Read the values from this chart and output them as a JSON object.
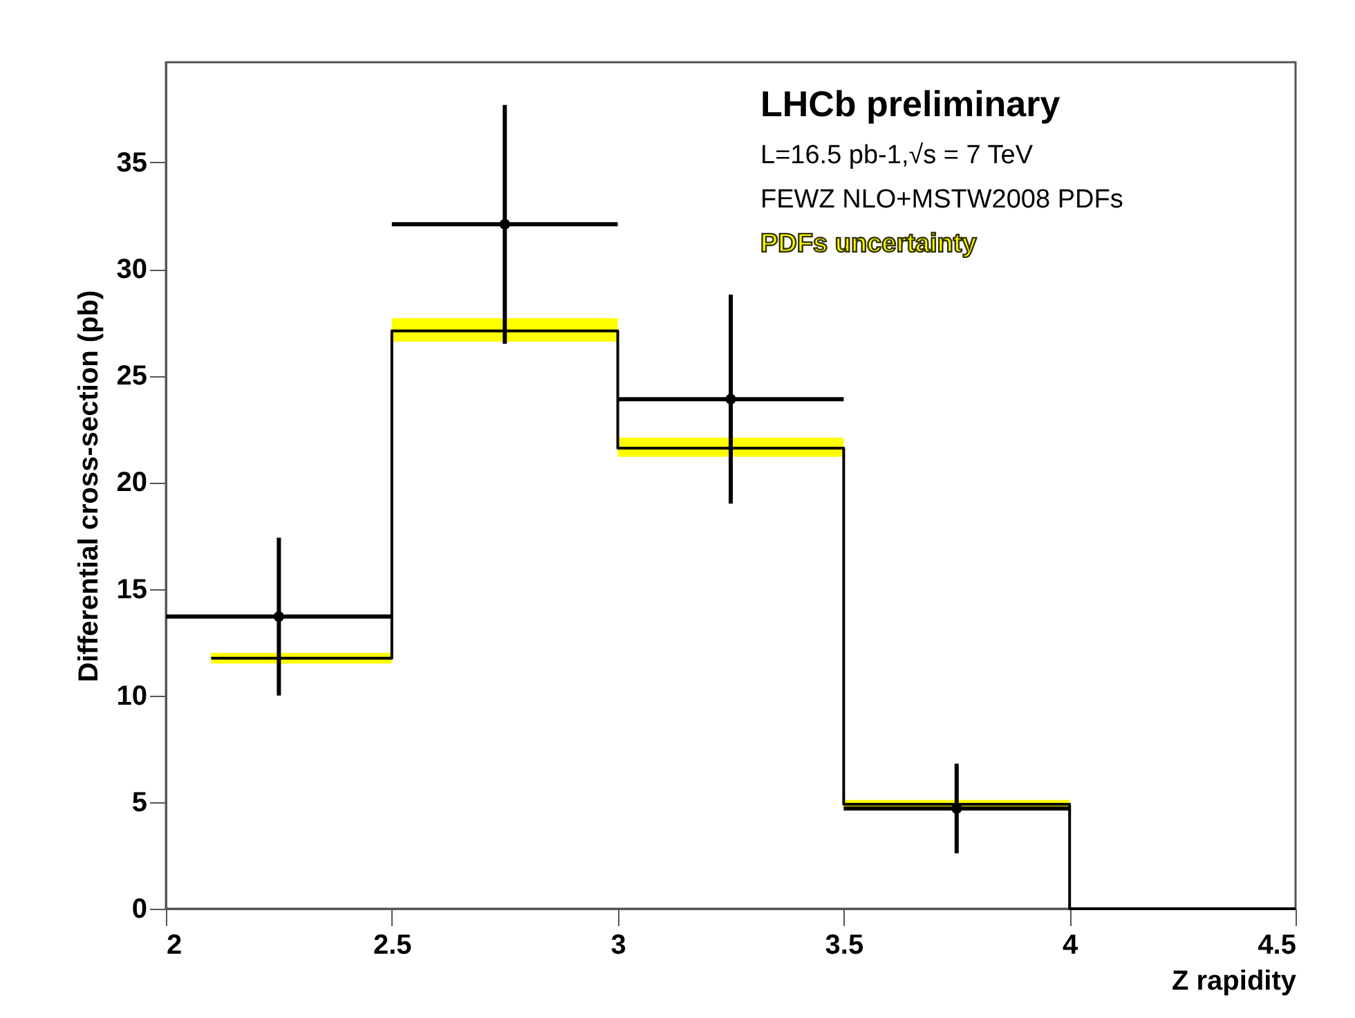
{
  "chart_data": {
    "type": "line",
    "xlabel": "Z rapidity",
    "ylabel": "Differential cross-section (pb)",
    "annotations": [
      "LHCb preliminary",
      "L=16.5 pb-1,√s = 7 TeV",
      "FEWZ NLO+MSTW2008 PDFs"
    ],
    "xlim": [
      2,
      4.5
    ],
    "xticks": [
      2,
      2.5,
      3,
      3.5,
      4,
      4.5
    ],
    "ylim": [
      0,
      39.7
    ],
    "yticks": [
      0,
      5,
      10,
      15,
      20,
      25,
      30,
      35
    ],
    "series": [
      {
        "name": "PDFs uncertainty",
        "color": "#000000",
        "x": [
          2.1,
          2.5,
          2.5,
          3,
          3,
          3.5,
          3.5,
          4,
          4,
          4.5
        ],
        "values": [
          11.75,
          11.75,
          27.1,
          27.1,
          21.6,
          21.6,
          4.9,
          4.9,
          0,
          0
        ],
        "lower": [
          11.5,
          11.5,
          26.6,
          26.6,
          21.2,
          21.2,
          4.7,
          4.7,
          null,
          null
        ],
        "upper": [
          12.0,
          12.0,
          27.7,
          27.7,
          22.1,
          22.1,
          5.1,
          5.1,
          null,
          null
        ]
      },
      {
        "type": "scatter",
        "color": "#000000",
        "x": [
          2.25,
          2.75,
          3.25,
          3.75
        ],
        "values": [
          13.7,
          32.1,
          23.9,
          4.7
        ],
        "errors": [
          3.7,
          5.6,
          4.9,
          2.1
        ],
        "xerrors": [
          0.25,
          0.25,
          0.25,
          0.25
        ]
      }
    ]
  }
}
